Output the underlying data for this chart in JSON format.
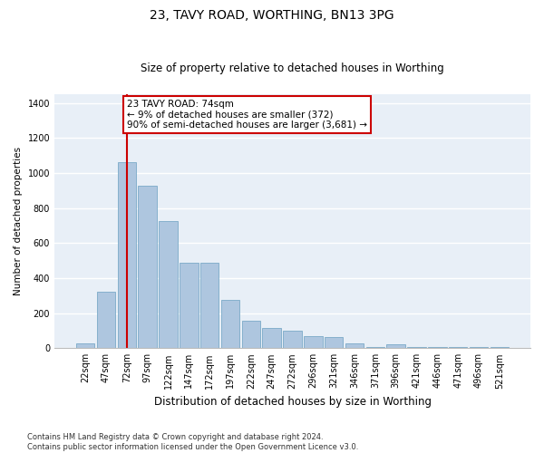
{
  "title": "23, TAVY ROAD, WORTHING, BN13 3PG",
  "subtitle": "Size of property relative to detached houses in Worthing",
  "xlabel": "Distribution of detached houses by size in Worthing",
  "ylabel": "Number of detached properties",
  "categories": [
    "22sqm",
    "47sqm",
    "72sqm",
    "97sqm",
    "122sqm",
    "147sqm",
    "172sqm",
    "197sqm",
    "222sqm",
    "247sqm",
    "272sqm",
    "296sqm",
    "321sqm",
    "346sqm",
    "371sqm",
    "396sqm",
    "421sqm",
    "446sqm",
    "471sqm",
    "496sqm",
    "521sqm"
  ],
  "values": [
    30,
    320,
    1060,
    930,
    725,
    490,
    490,
    275,
    155,
    115,
    100,
    70,
    65,
    25,
    5,
    20,
    5,
    5,
    5,
    5,
    5
  ],
  "bar_color": "#aec6df",
  "bar_edgecolor": "#7aaac8",
  "vline_x_index": 2,
  "vline_color": "#cc0000",
  "annotation_text": "23 TAVY ROAD: 74sqm\n← 9% of detached houses are smaller (372)\n90% of semi-detached houses are larger (3,681) →",
  "annotation_box_facecolor": "#ffffff",
  "annotation_box_edgecolor": "#cc0000",
  "ylim": [
    0,
    1450
  ],
  "yticks": [
    0,
    200,
    400,
    600,
    800,
    1000,
    1200,
    1400
  ],
  "plot_bg_color": "#e8eff7",
  "fig_bg_color": "#ffffff",
  "grid_color": "#ffffff",
  "title_fontsize": 10,
  "subtitle_fontsize": 8.5,
  "xlabel_fontsize": 8.5,
  "ylabel_fontsize": 7.5,
  "tick_fontsize": 7,
  "annotation_fontsize": 7.5,
  "footer_fontsize": 6
}
